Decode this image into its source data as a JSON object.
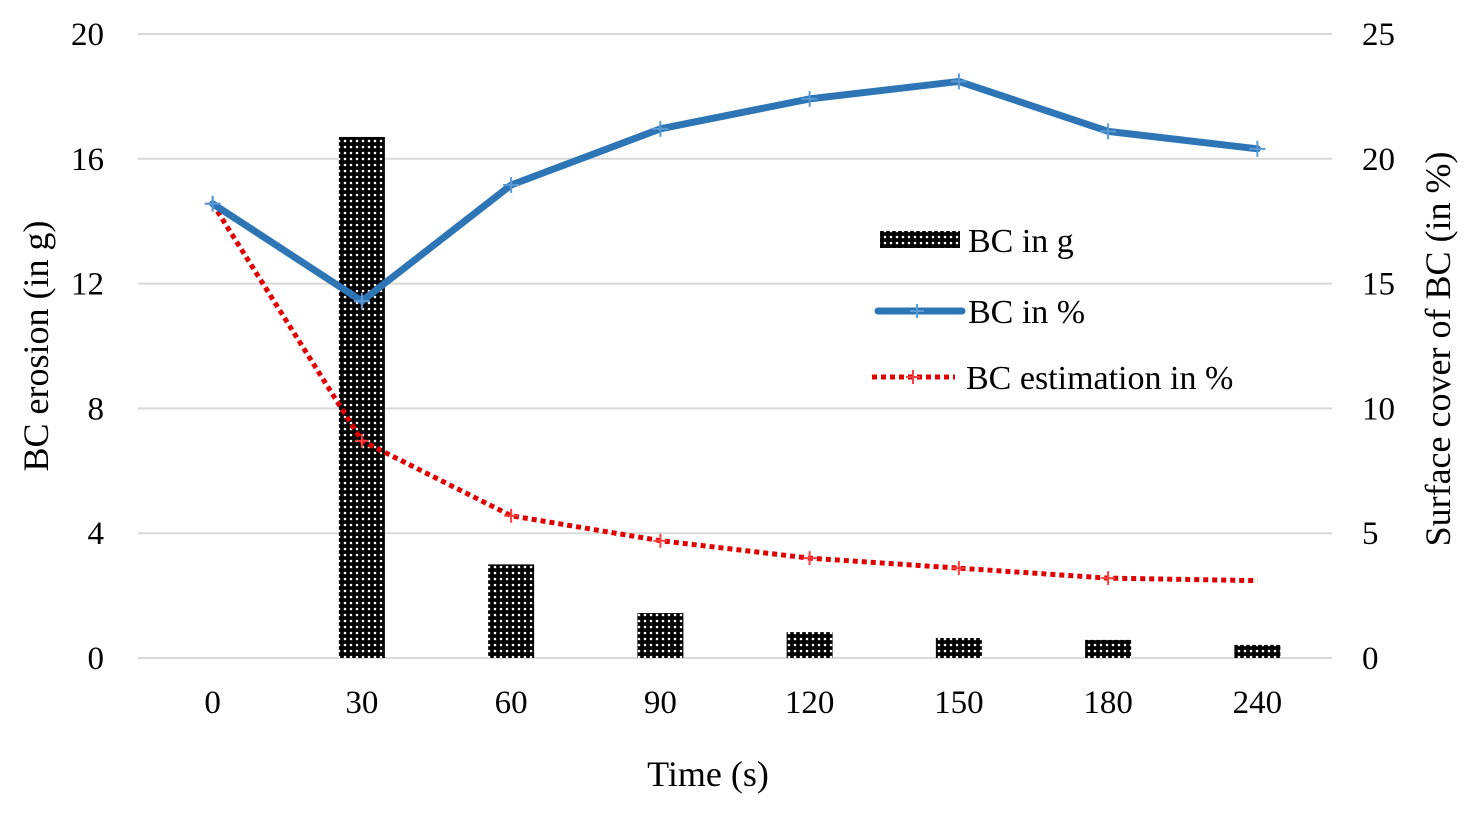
{
  "chart_data": {
    "type": "bar+line",
    "categories": [
      "0",
      "30",
      "60",
      "90",
      "120",
      "150",
      "180",
      "240"
    ],
    "xlabel": "Time (s)",
    "ylabel": "BC erosion (in g)",
    "y2label": "Surface cover of BC (in %)",
    "ylim": [
      0,
      20
    ],
    "y2lim": [
      0,
      25
    ],
    "yticks": [
      "0",
      "4",
      "8",
      "12",
      "16",
      "20"
    ],
    "y2ticks": [
      "0",
      "5",
      "10",
      "15",
      "20",
      "25"
    ],
    "grid": true,
    "legend_position": "center-right",
    "series": [
      {
        "name": "BC in g",
        "type": "bar",
        "axis": "left",
        "color": "#000000",
        "values": [
          0,
          16.7,
          3.0,
          1.44,
          0.83,
          0.64,
          0.58,
          0.42
        ]
      },
      {
        "name": "BC in %",
        "type": "line",
        "axis": "right",
        "color": "#2e75b6",
        "values": [
          18.2,
          14.3,
          18.95,
          21.2,
          22.4,
          23.1,
          21.1,
          20.4
        ]
      },
      {
        "name": "BC estimation in %",
        "type": "line-dotted",
        "axis": "right",
        "color": "#e00000",
        "values": [
          18.2,
          8.7,
          5.7,
          4.7,
          4.0,
          3.6,
          3.2,
          3.1
        ]
      }
    ]
  }
}
